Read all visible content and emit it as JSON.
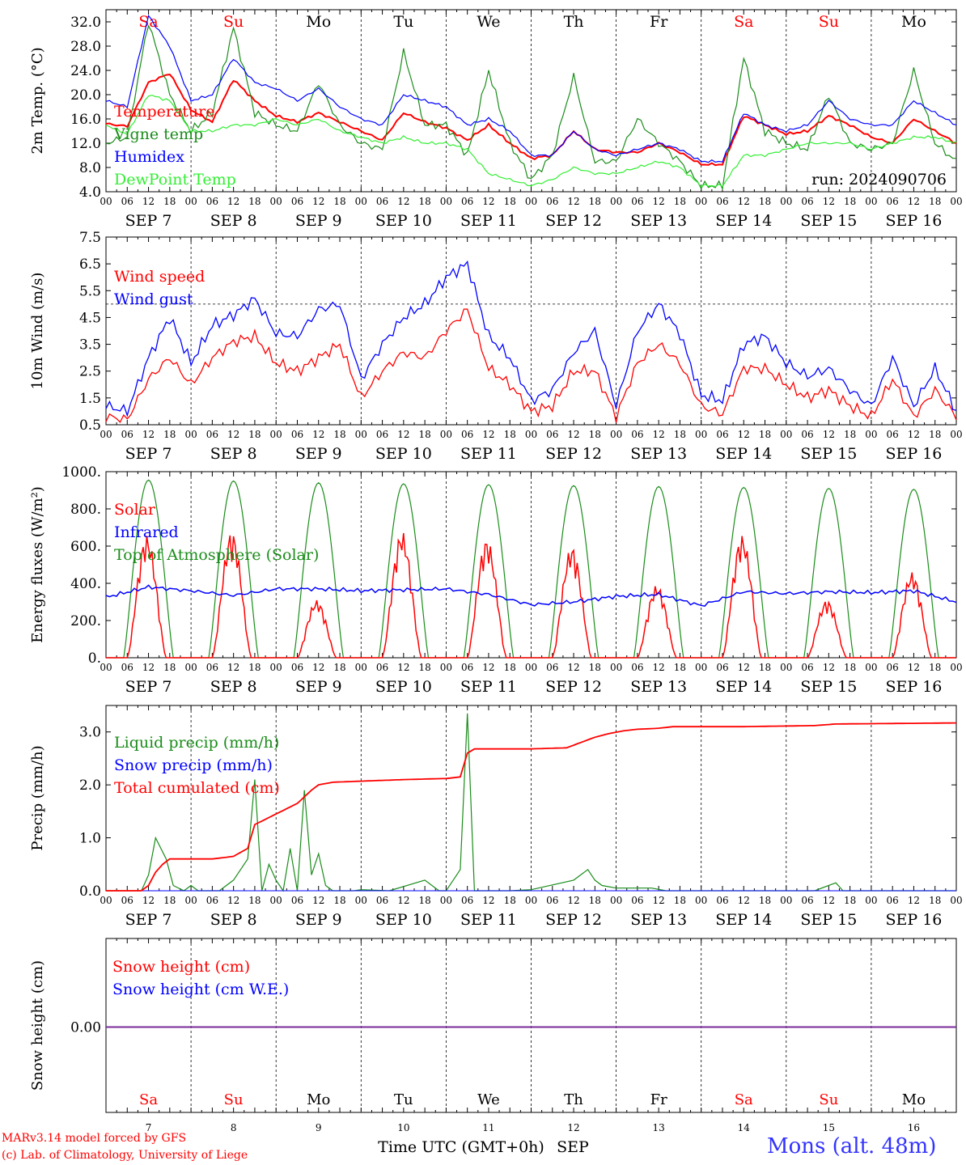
{
  "colors": {
    "red": "#ff0000",
    "green": "#1a8c1a",
    "blue": "#0000ff",
    "lightgreen": "#33ee33",
    "purple": "#7a2a9a"
  },
  "days": {
    "names": [
      "Sa",
      "Su",
      "Mo",
      "Tu",
      "We",
      "Th",
      "Fr",
      "Sa",
      "Su",
      "Mo"
    ],
    "weekend": [
      true,
      true,
      false,
      false,
      false,
      false,
      false,
      true,
      true,
      false
    ],
    "dates": [
      "SEP  7",
      "SEP  8",
      "SEP  9",
      "SEP 10",
      "SEP 11",
      "SEP 12",
      "SEP 13",
      "SEP 14",
      "SEP 15",
      "SEP 16"
    ],
    "numbers": [
      "7",
      "8",
      "9",
      "10",
      "11",
      "12",
      "13",
      "14",
      "15",
      "16"
    ],
    "hour_ticks": [
      "00",
      "06",
      "12",
      "18"
    ]
  },
  "footer": {
    "line1": "MARv3.14 model forced by GFS",
    "line2": "(c) Lab. of Climatology, University of Liege",
    "xlabel": "Time UTC (GMT+0h)",
    "month": "SEP",
    "station": "Mons (alt. 48m)"
  },
  "chart_data": [
    {
      "type": "line",
      "ylabel": "2m Temp. (°C)",
      "ylim": [
        4,
        34
      ],
      "yticks": [
        "4.0",
        "8.0",
        "12.0",
        "16.0",
        "20.0",
        "24.0",
        "28.0",
        "32.0"
      ],
      "ytick_values": [
        4,
        8,
        12,
        16,
        20,
        24,
        28,
        32
      ],
      "annotation": "run: 2024090706",
      "x_hours_from_start": [
        0,
        6,
        12,
        18,
        24,
        30,
        36,
        42,
        48,
        54,
        60,
        66,
        72,
        78,
        84,
        90,
        96,
        102,
        108,
        114,
        120,
        126,
        132,
        138,
        144,
        150,
        156,
        162,
        168,
        174,
        180,
        186,
        192,
        198,
        204,
        210,
        216,
        222,
        228,
        234,
        240
      ],
      "series": [
        {
          "name": "Temperature",
          "color": "red",
          "values": [
            15.2,
            14.8,
            22,
            23.5,
            17.5,
            15.5,
            22.5,
            19,
            16.5,
            15.5,
            17,
            15.5,
            14,
            12.5,
            17,
            15.5,
            14.5,
            12.5,
            15,
            12,
            9.5,
            10,
            14,
            11,
            10.5,
            10.5,
            12,
            10.5,
            8.5,
            8.5,
            16.5,
            15,
            13.5,
            14,
            16.5,
            15,
            13,
            12,
            16,
            14,
            12
          ]
        },
        {
          "name": "Vigne temp",
          "color": "green",
          "values": [
            12,
            13,
            32,
            20,
            14,
            17,
            31,
            17,
            15,
            14,
            22,
            15,
            12,
            11,
            27,
            15,
            15,
            10,
            24,
            12,
            6,
            10,
            23,
            9,
            9,
            16,
            12,
            9,
            5,
            5,
            26,
            14,
            12,
            11,
            20,
            12,
            11,
            12,
            24,
            12,
            9
          ]
        },
        {
          "name": "Humidex",
          "color": "blue",
          "values": [
            19,
            18,
            33,
            28,
            19,
            20,
            26,
            22,
            21,
            19,
            21,
            18,
            16,
            15,
            20,
            19,
            18,
            15,
            16,
            14,
            10,
            10,
            14,
            11,
            10,
            11,
            12,
            11,
            9,
            9,
            17,
            15,
            14,
            15,
            19,
            16,
            15,
            15,
            19,
            17,
            15
          ]
        },
        {
          "name": "DewPoint Temp",
          "color": "lightgreen",
          "values": [
            15,
            13.5,
            20,
            19,
            14,
            14,
            15,
            15,
            16,
            15,
            16,
            14,
            13,
            12,
            13,
            12,
            12,
            11,
            7,
            6,
            5,
            6,
            8,
            7,
            7,
            8,
            9,
            8,
            5,
            5,
            10,
            10,
            11,
            12,
            12,
            12,
            11,
            12,
            13,
            13,
            12
          ]
        }
      ]
    },
    {
      "type": "line",
      "ylabel": "10m Wind (m/s)",
      "ylim": [
        0.5,
        7.5
      ],
      "yticks": [
        "0.5",
        "1.5",
        "2.5",
        "3.5",
        "4.5",
        "5.5",
        "6.5",
        "7.5"
      ],
      "ytick_values": [
        0.5,
        1.5,
        2.5,
        3.5,
        4.5,
        5.5,
        6.5,
        7.5
      ],
      "ref_line": 5.0,
      "x_hours_from_start": [
        0,
        6,
        12,
        18,
        24,
        30,
        36,
        42,
        48,
        54,
        60,
        66,
        72,
        78,
        84,
        90,
        96,
        102,
        108,
        114,
        120,
        126,
        132,
        138,
        144,
        150,
        156,
        162,
        168,
        174,
        180,
        186,
        192,
        198,
        204,
        210,
        216,
        222,
        228,
        234,
        240
      ],
      "series": [
        {
          "name": "Wind speed",
          "color": "red",
          "values": [
            0.8,
            0.7,
            2.2,
            3.0,
            2.0,
            3.0,
            3.6,
            3.8,
            2.8,
            2.5,
            3.0,
            3.5,
            1.5,
            2.5,
            3.2,
            3.0,
            4.0,
            4.8,
            2.6,
            2.0,
            1.0,
            1.2,
            2.5,
            2.5,
            0.8,
            2.8,
            3.5,
            2.8,
            1.2,
            0.9,
            2.6,
            2.6,
            2.0,
            1.5,
            1.8,
            1.2,
            0.8,
            2.2,
            0.8,
            1.8,
            0.8
          ]
        },
        {
          "name": "Wind gust",
          "color": "blue",
          "values": [
            1.2,
            1.0,
            3.0,
            4.5,
            2.8,
            4.2,
            4.6,
            5.2,
            3.9,
            3.8,
            4.8,
            5.0,
            2.2,
            3.5,
            4.5,
            5.0,
            6.0,
            6.5,
            3.8,
            3.0,
            1.4,
            1.8,
            3.2,
            4.0,
            1.2,
            4.0,
            5.0,
            3.9,
            1.6,
            1.4,
            3.5,
            3.8,
            2.8,
            2.3,
            2.6,
            1.8,
            1.2,
            3.0,
            1.2,
            2.6,
            1.0
          ]
        }
      ]
    },
    {
      "type": "line",
      "ylabel": "Energy fluxes (W/m²)",
      "ylim": [
        0,
        1000
      ],
      "yticks": [
        "0.",
        "200.",
        "400.",
        "600.",
        "800.",
        "1000."
      ],
      "ytick_values": [
        0,
        200,
        400,
        600,
        800,
        1000
      ],
      "solar_peaks": [
        660,
        680,
        310,
        680,
        640,
        600,
        390,
        660,
        310,
        460
      ],
      "toa_peaks": [
        955,
        950,
        940,
        935,
        930,
        925,
        920,
        915,
        910,
        905
      ],
      "infrared": {
        "x_hours_from_start": [
          0,
          12,
          24,
          36,
          48,
          60,
          72,
          84,
          96,
          108,
          120,
          132,
          144,
          156,
          168,
          180,
          192,
          204,
          216,
          228,
          240
        ],
        "values": [
          325,
          380,
          360,
          335,
          370,
          370,
          360,
          365,
          370,
          340,
          285,
          300,
          330,
          340,
          280,
          355,
          345,
          355,
          350,
          360,
          300
        ]
      },
      "series": [
        {
          "name": "Solar",
          "color": "red"
        },
        {
          "name": "Infrared",
          "color": "blue"
        },
        {
          "name": "Top of Atmosphere (Solar)",
          "color": "green"
        }
      ]
    },
    {
      "type": "line",
      "ylabel": "Precip (mm/h)",
      "ylim": [
        0,
        3.5
      ],
      "yticks": [
        "0.0",
        "1.0",
        "2.0",
        "3.0"
      ],
      "ytick_values": [
        0,
        1,
        2,
        3
      ],
      "series": [
        {
          "name": "Liquid precip (mm/h)",
          "color": "green",
          "x_hours_from_start": [
            0,
            6,
            10,
            12,
            14,
            17,
            19,
            22,
            24,
            26,
            28,
            32,
            36,
            40,
            42,
            44,
            46,
            48,
            50,
            52,
            54,
            56,
            58,
            60,
            62,
            64,
            66,
            68,
            70,
            72,
            80,
            90,
            94,
            96,
            98,
            100,
            102,
            104,
            106,
            108,
            110,
            112,
            114,
            120,
            132,
            134,
            136,
            138,
            140,
            144,
            148,
            150,
            152,
            154,
            158,
            162,
            168,
            200,
            206,
            208,
            210,
            240
          ],
          "values": [
            0,
            0,
            0,
            0.3,
            1.0,
            0.6,
            0.1,
            0,
            0.1,
            0,
            0,
            0,
            0.2,
            0.6,
            2.1,
            0.0,
            0.5,
            0.2,
            0,
            0.8,
            0,
            1.9,
            0.3,
            0.7,
            0.1,
            0,
            0,
            0,
            0,
            0.02,
            0,
            0.2,
            0,
            0,
            0.2,
            0.4,
            3.35,
            0,
            0,
            0,
            0,
            0,
            0,
            0.02,
            0.2,
            0.3,
            0.4,
            0.2,
            0.1,
            0.05,
            0.05,
            0.05,
            0.05,
            0.05,
            0,
            0,
            0,
            0,
            0.15,
            0,
            0,
            0
          ]
        },
        {
          "name": "Snow precip (mm/h)",
          "color": "blue"
        },
        {
          "name": "Total cumulated (cm)",
          "color": "red",
          "x_hours_from_start": [
            0,
            8,
            10,
            12,
            14,
            16,
            18,
            20,
            24,
            30,
            36,
            40,
            42,
            48,
            54,
            58,
            60,
            64,
            72,
            84,
            96,
            100,
            102,
            104,
            108,
            112,
            120,
            130,
            134,
            138,
            142,
            146,
            150,
            156,
            160,
            168,
            180,
            200,
            206,
            240
          ],
          "values": [
            0,
            0,
            0,
            0.1,
            0.35,
            0.5,
            0.6,
            0.6,
            0.6,
            0.6,
            0.65,
            0.8,
            1.25,
            1.45,
            1.65,
            1.9,
            2.0,
            2.05,
            2.07,
            2.1,
            2.12,
            2.15,
            2.6,
            2.68,
            2.68,
            2.68,
            2.68,
            2.7,
            2.8,
            2.9,
            2.97,
            3.02,
            3.05,
            3.07,
            3.1,
            3.1,
            3.1,
            3.12,
            3.15,
            3.17
          ]
        }
      ]
    },
    {
      "type": "line",
      "ylabel": "Snow height (cm)",
      "yticks": [
        "0.00"
      ],
      "ytick_values": [
        0
      ],
      "series": [
        {
          "name": "Snow height (cm)",
          "color": "red",
          "values": [
            0,
            0
          ]
        },
        {
          "name": "Snow height (cm W.E.)",
          "color": "blue",
          "values": [
            0,
            0
          ]
        }
      ]
    }
  ]
}
